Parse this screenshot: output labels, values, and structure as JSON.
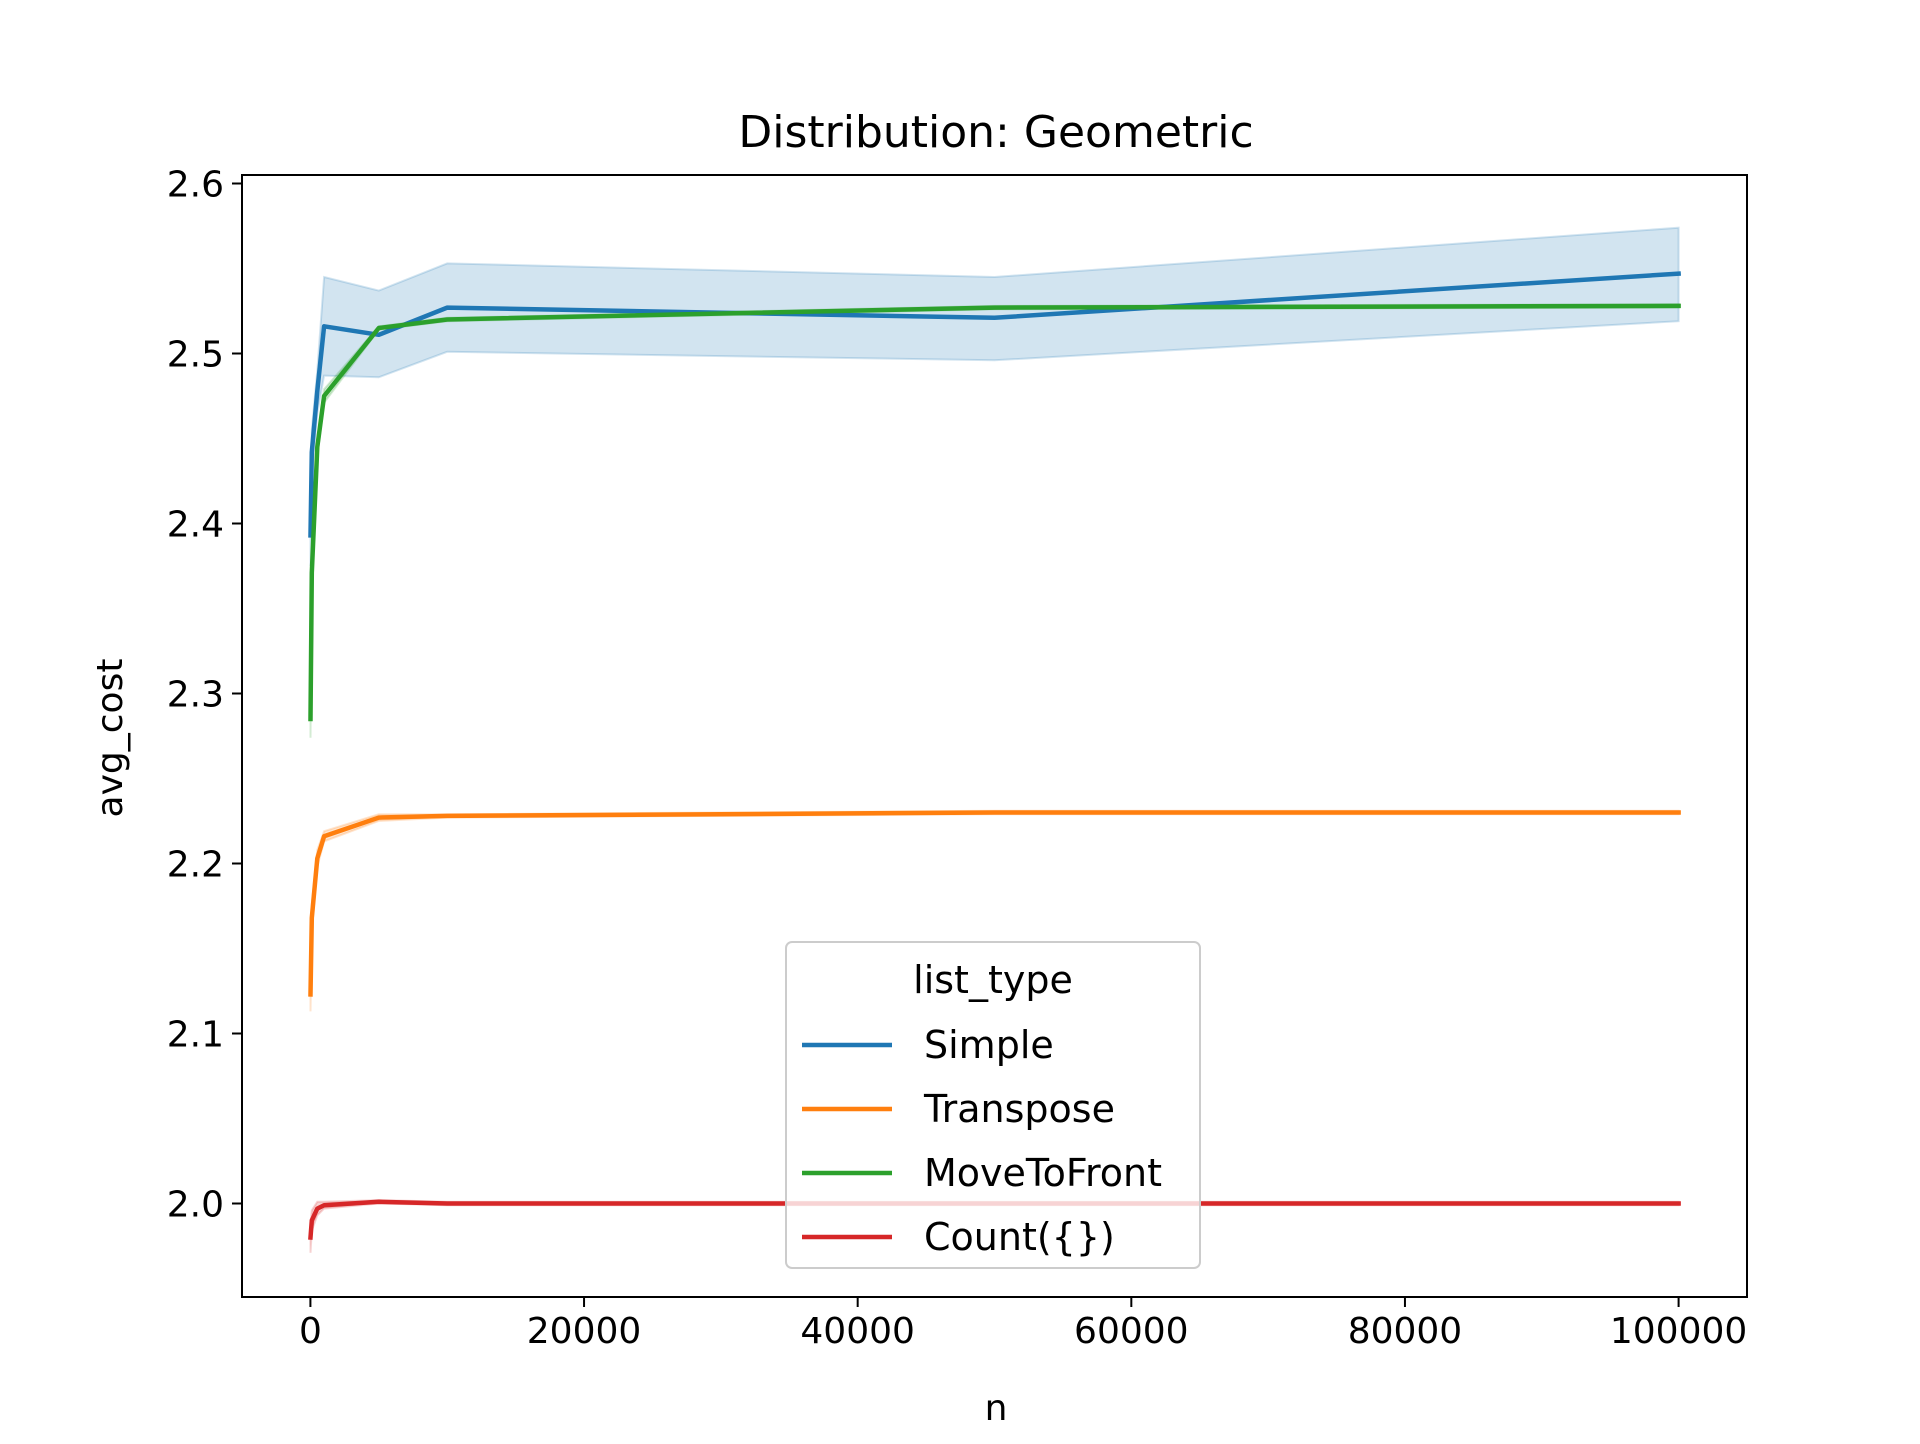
{
  "chart_data": {
    "type": "line",
    "title": "Distribution: Geometric",
    "xlabel": "n",
    "ylabel": "avg_cost",
    "xlim": [
      -5000,
      105000
    ],
    "ylim": [
      1.945,
      2.605
    ],
    "xticks": [
      0,
      20000,
      40000,
      60000,
      80000,
      100000
    ],
    "xtick_labels": [
      "0",
      "20000",
      "40000",
      "60000",
      "80000",
      "100000"
    ],
    "yticks": [
      2.0,
      2.1,
      2.2,
      2.3,
      2.4,
      2.5,
      2.6
    ],
    "ytick_labels": [
      "2.0",
      "2.1",
      "2.2",
      "2.3",
      "2.4",
      "2.5",
      "2.6"
    ],
    "grid": false,
    "legend": {
      "title": "list_type",
      "placement": "lower center"
    },
    "x": [
      10,
      100,
      500,
      1000,
      5000,
      10000,
      50000,
      100000
    ],
    "series": [
      {
        "name": "Simple",
        "color": "#1f77b4",
        "values": [
          2.393,
          2.442,
          2.478,
          2.516,
          2.511,
          2.527,
          2.521,
          2.547
        ],
        "ci_low": [
          2.375,
          2.43,
          2.465,
          2.487,
          2.486,
          2.501,
          2.496,
          2.519
        ],
        "ci_high": [
          2.41,
          2.455,
          2.49,
          2.545,
          2.537,
          2.553,
          2.545,
          2.574
        ]
      },
      {
        "name": "Transpose",
        "color": "#ff7f0e",
        "values": [
          2.123,
          2.168,
          2.203,
          2.216,
          2.227,
          2.228,
          2.23,
          2.23
        ],
        "ci_low": [
          2.113,
          2.16,
          2.198,
          2.213,
          2.225,
          2.227,
          2.229,
          2.229
        ],
        "ci_high": [
          2.133,
          2.176,
          2.208,
          2.219,
          2.229,
          2.229,
          2.231,
          2.231
        ]
      },
      {
        "name": "MoveToFront",
        "color": "#2ca02c",
        "values": [
          2.285,
          2.371,
          2.445,
          2.475,
          2.515,
          2.52,
          2.527,
          2.528
        ],
        "ci_low": [
          2.274,
          2.362,
          2.44,
          2.471,
          2.514,
          2.519,
          2.526,
          2.527
        ],
        "ci_high": [
          2.296,
          2.38,
          2.45,
          2.479,
          2.516,
          2.521,
          2.528,
          2.529
        ]
      },
      {
        "name": "Count({})",
        "color": "#d62728",
        "values": [
          1.98,
          1.99,
          1.997,
          1.999,
          2.001,
          2.0,
          2.0,
          2.0
        ],
        "ci_low": [
          1.971,
          1.984,
          1.993,
          1.997,
          2.0,
          1.999,
          1.999,
          1.999
        ],
        "ci_high": [
          1.989,
          1.996,
          2.001,
          2.001,
          2.002,
          2.001,
          2.001,
          2.001
        ]
      }
    ]
  }
}
